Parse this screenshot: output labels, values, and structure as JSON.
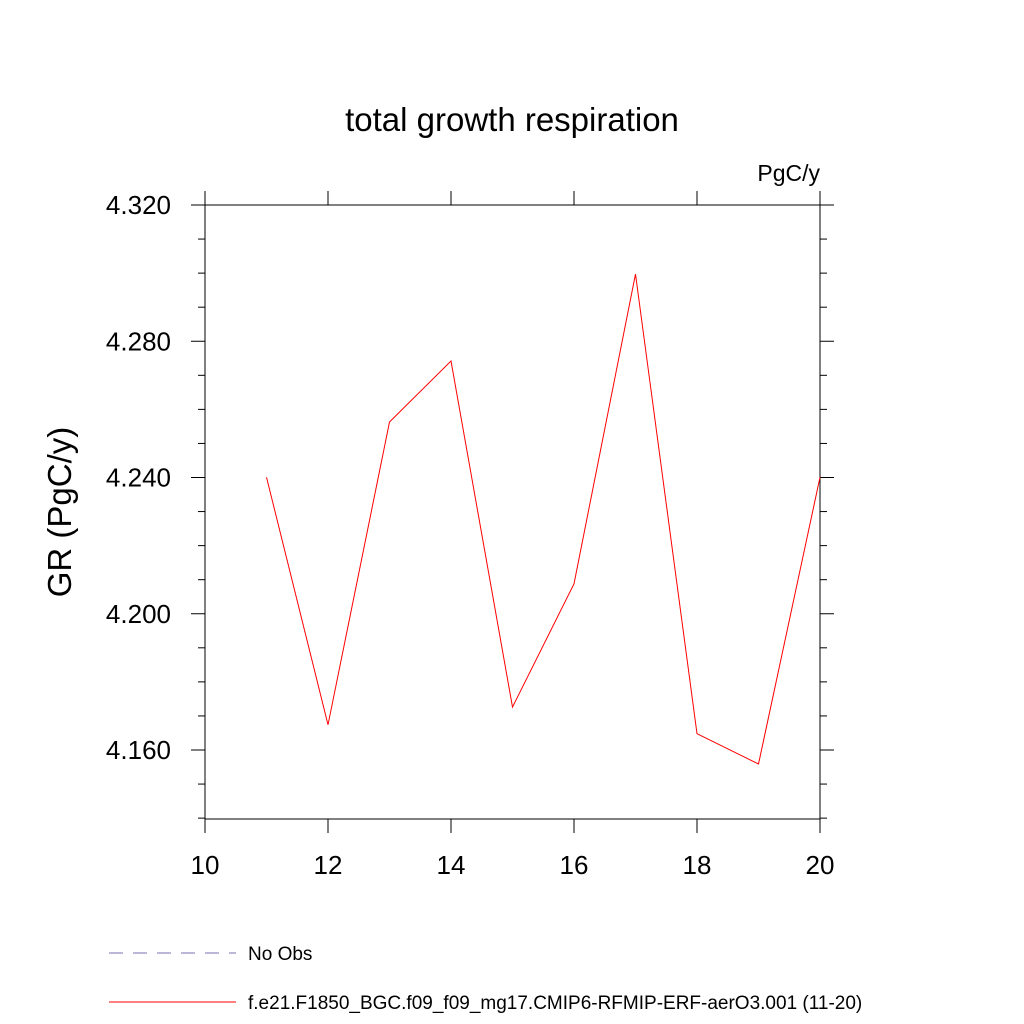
{
  "chart_data": {
    "type": "line",
    "title": "total growth respiration",
    "units_label": "PgC/y",
    "xlabel": "",
    "ylabel": "GR  (PgC/y)",
    "xlim": [
      10,
      20
    ],
    "ylim": [
      4.14,
      4.325
    ],
    "x_ticks": [
      10,
      12,
      14,
      16,
      18,
      20
    ],
    "x_tick_labels": [
      "10",
      "12",
      "14",
      "16",
      "18",
      "20"
    ],
    "y_ticks": [
      4.16,
      4.2,
      4.24,
      4.28,
      4.32
    ],
    "y_tick_labels": [
      "4.160",
      "4.200",
      "4.240",
      "4.280",
      "4.320"
    ],
    "grid": false,
    "series": [
      {
        "name": "f.e21.F1850_BGC.f09_f09_mg17.CMIP6-RFMIP-ERF-aerO3.001 (11-20)",
        "color": "#ff0000",
        "dash": "solid",
        "x": [
          11,
          12,
          13,
          14,
          15,
          16,
          17,
          18,
          19,
          20
        ],
        "values": [
          4.2401,
          4.1674,
          4.2563,
          4.2742,
          4.1726,
          4.2088,
          4.2997,
          4.1648,
          4.1559,
          4.2401
        ]
      }
    ],
    "legend": [
      {
        "label": "No Obs",
        "color": "#7a6fb3",
        "dash": "dashed"
      },
      {
        "label": "f.e21.F1850_BGC.f09_f09_mg17.CMIP6-RFMIP-ERF-aerO3.001 (11-20)",
        "color": "#ff0000",
        "dash": "solid"
      }
    ],
    "legend_position": "bottom-left"
  }
}
